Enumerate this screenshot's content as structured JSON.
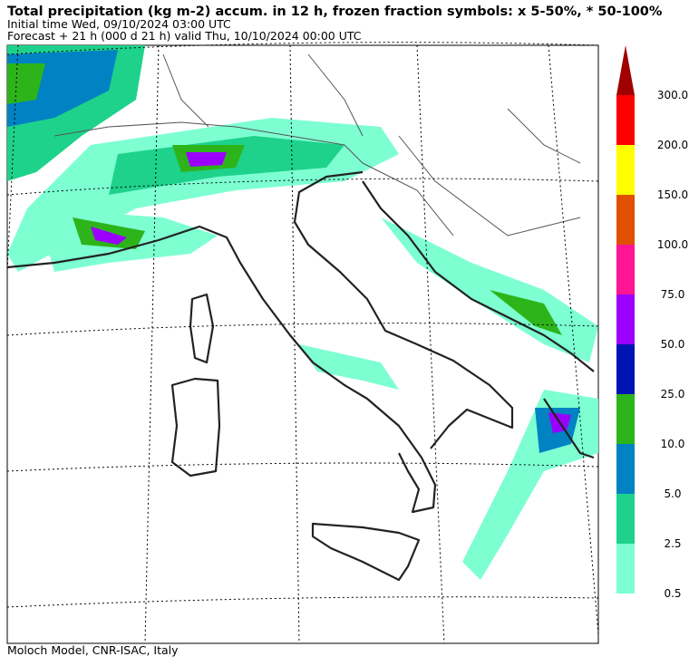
{
  "header": {
    "title": "Total precipitation (kg m-2) accum. in 12 h, frozen fraction symbols: x 5-50%, * 50-100%",
    "initial_time": "Initial time  Wed, 09/10/2024  03:00 UTC",
    "forecast": "Forecast  +  21 h  (000 d 21 h)  valid Thu, 10/10/2024 00:00 UTC"
  },
  "colorbar": {
    "levels": [
      {
        "value": 0.5,
        "label": "0.5"
      },
      {
        "value": 2.5,
        "label": "2.5"
      },
      {
        "value": 5,
        "label": "5.0"
      },
      {
        "value": 10,
        "label": "10.0"
      },
      {
        "value": 25,
        "label": "25.0"
      },
      {
        "value": 50,
        "label": "50.0"
      },
      {
        "value": 75,
        "label": "75.0"
      },
      {
        "value": 100,
        "label": "100.0"
      },
      {
        "value": 150,
        "label": "150.0"
      },
      {
        "value": 200,
        "label": "200.0"
      },
      {
        "value": 300,
        "label": "300.0"
      }
    ],
    "colors": [
      "#7dffd2",
      "#1ed28c",
      "#0082c3",
      "#2db41a",
      "#0014b4",
      "#9b00ff",
      "#ff1493",
      "#e05000",
      "#ffff00",
      "#ff0000",
      "#a00000"
    ]
  },
  "footer": "Moloch Model, CNR-ISAC, Italy"
}
